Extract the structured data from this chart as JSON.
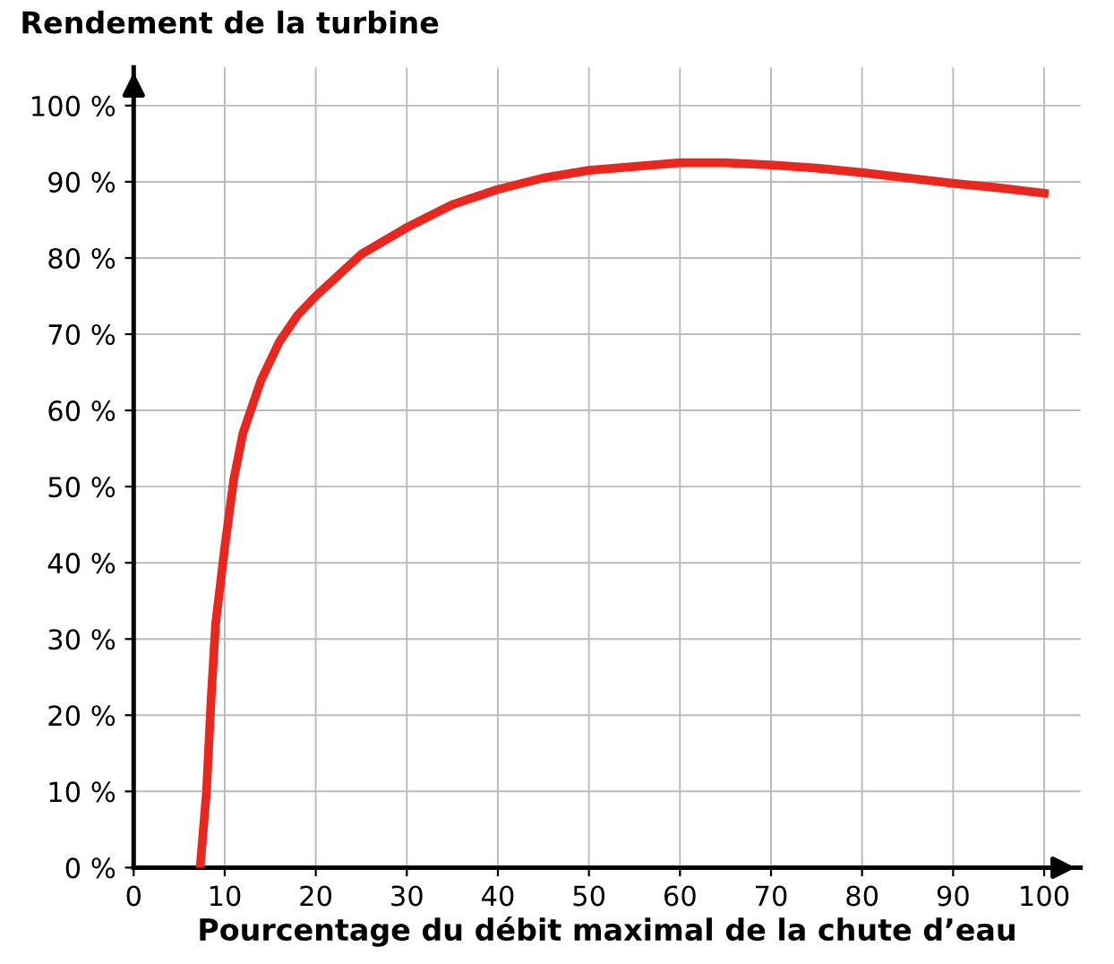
{
  "chart_data": {
    "type": "line",
    "xlabel": "Pourcentage du débit maximal de la chute d’eau",
    "ylabel": "Rendement de la turbine",
    "x": [
      7.3,
      8,
      8.5,
      9,
      10,
      11,
      12,
      14,
      16,
      18,
      20,
      25,
      30,
      35,
      40,
      45,
      50,
      55,
      60,
      65,
      70,
      75,
      80,
      85,
      90,
      95,
      100
    ],
    "series": [
      {
        "color": "#e8281e",
        "values": [
          0,
          10,
          22,
          32,
          42,
          51,
          57,
          64,
          69,
          72.5,
          75,
          80.5,
          84,
          87,
          89,
          90.5,
          91.5,
          92,
          92.5,
          92.5,
          92.2,
          91.8,
          91.2,
          90.5,
          89.8,
          89.2,
          88.5
        ]
      }
    ],
    "xlim": [
      0,
      104
    ],
    "ylim": [
      0,
      105
    ],
    "xticks": [
      0,
      10,
      20,
      30,
      40,
      50,
      60,
      70,
      80,
      90,
      100
    ],
    "yticks": [
      {
        "value": 0,
        "label": "0 %"
      },
      {
        "value": 10,
        "label": "10 %"
      },
      {
        "value": 20,
        "label": "20 %"
      },
      {
        "value": 30,
        "label": "30 %"
      },
      {
        "value": 40,
        "label": "40 %"
      },
      {
        "value": 50,
        "label": "50 %"
      },
      {
        "value": 60,
        "label": "60 %"
      },
      {
        "value": 70,
        "label": "70 %"
      },
      {
        "value": 80,
        "label": "80 %"
      },
      {
        "value": 90,
        "label": "90 %"
      },
      {
        "value": 100,
        "label": "100 %"
      }
    ],
    "grid": true,
    "marker": "none",
    "line_style": "solid"
  }
}
